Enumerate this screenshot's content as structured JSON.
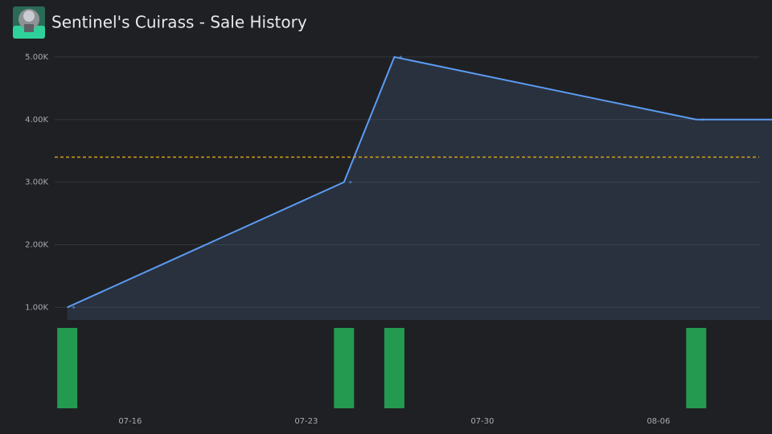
{
  "chart_data": {
    "type": "line",
    "title": "Sentinel's Cuirass - Sale History",
    "x": [
      "07-13",
      "07-24",
      "07-26",
      "08-07"
    ],
    "series": [
      {
        "color": "#5b9cf2",
        "values": [
          1000,
          3000,
          5000,
          4000
        ]
      }
    ],
    "volumes": {
      "color": "#239a50",
      "values": [
        1,
        1,
        1,
        1
      ]
    },
    "reference_line": {
      "value": 3400,
      "color": "#d4a21a"
    },
    "xlim": [
      "07-13",
      "08-10"
    ],
    "xticks": [
      "07-16",
      "07-23",
      "07-30",
      "08-06"
    ],
    "ylim": [
      800,
      5140
    ],
    "yticks": [
      {
        "value": 1000,
        "label": "1.00K"
      },
      {
        "value": 2000,
        "label": "2.00K"
      },
      {
        "value": 3000,
        "label": "3.00K"
      },
      {
        "value": 4000,
        "label": "4.00K"
      },
      {
        "value": 5000,
        "label": "5.00K"
      }
    ],
    "grid": true
  }
}
